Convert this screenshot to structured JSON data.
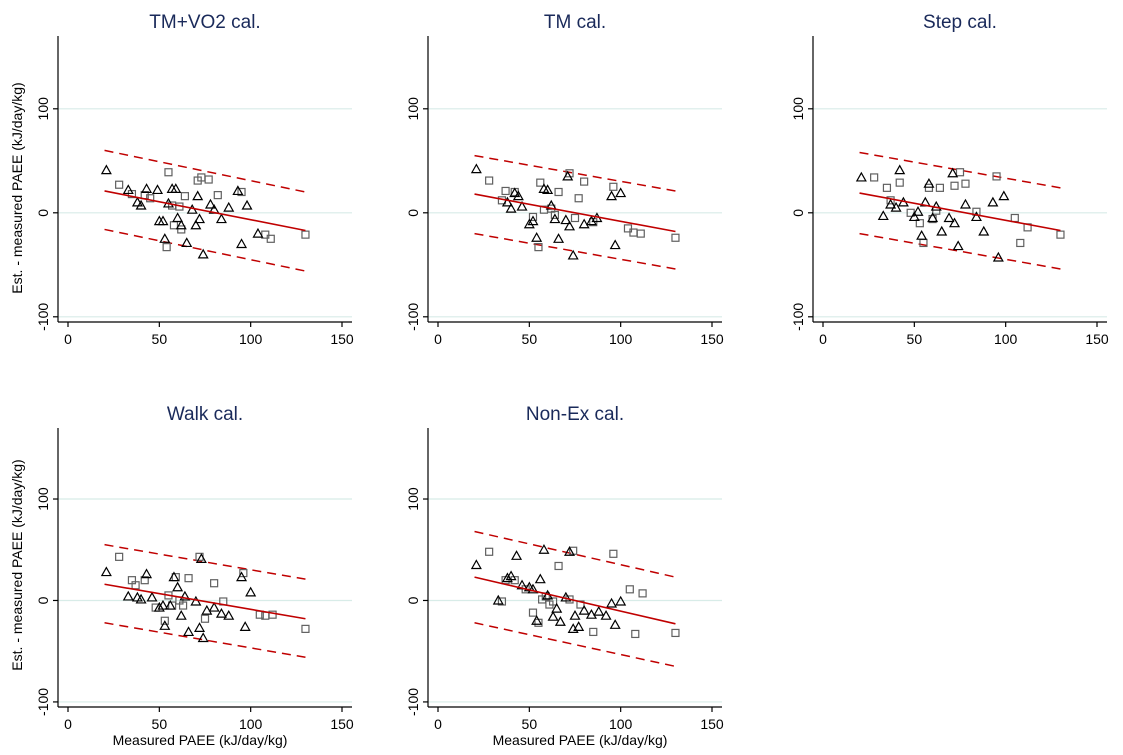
{
  "figure": {
    "ylabel": "Est. - measured PAEE (kJ/day/kg)",
    "xlabel": "Measured PAEE (kJ/day/kg)"
  },
  "colors": {
    "title": "#1a2a5a",
    "fit_line": "#c00000",
    "limits": "#c00000",
    "grid": "#d8ece8",
    "triangle": "#000000",
    "square": "#606060"
  },
  "chart_data": [
    {
      "type": "scatter",
      "title": "TM+VO2 cal.",
      "xlim": [
        0,
        150
      ],
      "ylim": [
        -105,
        170
      ],
      "xticks": [
        0,
        50,
        100,
        150
      ],
      "yticks": [
        -100,
        0,
        100
      ],
      "grid": "y",
      "fit": [
        [
          20,
          21
        ],
        [
          130,
          -17
        ]
      ],
      "lower_limit": [
        [
          20,
          -16
        ],
        [
          130,
          -56
        ]
      ],
      "upper_limit": [
        [
          20,
          60
        ],
        [
          130,
          20
        ]
      ],
      "triangles": [
        [
          21,
          41
        ],
        [
          33,
          22
        ],
        [
          38,
          10
        ],
        [
          40,
          7
        ],
        [
          43,
          23
        ],
        [
          49,
          22
        ],
        [
          50,
          -8
        ],
        [
          52,
          -8
        ],
        [
          53,
          -25
        ],
        [
          55,
          9
        ],
        [
          57,
          23
        ],
        [
          59,
          23
        ],
        [
          60,
          -5
        ],
        [
          62,
          -12
        ],
        [
          65,
          -29
        ],
        [
          68,
          3
        ],
        [
          70,
          -12
        ],
        [
          71,
          16
        ],
        [
          72,
          -6
        ],
        [
          74,
          -40
        ],
        [
          78,
          8
        ],
        [
          80,
          3
        ],
        [
          84,
          -6
        ],
        [
          88,
          5
        ],
        [
          93,
          21
        ],
        [
          95,
          -30
        ],
        [
          98,
          7
        ],
        [
          104,
          -20
        ]
      ],
      "squares": [
        [
          28,
          27
        ],
        [
          35,
          18
        ],
        [
          42,
          17
        ],
        [
          45,
          14
        ],
        [
          54,
          -33
        ],
        [
          55,
          39
        ],
        [
          57,
          7
        ],
        [
          58,
          -12
        ],
        [
          61,
          6
        ],
        [
          62,
          -16
        ],
        [
          64,
          16
        ],
        [
          71,
          31
        ],
        [
          73,
          34
        ],
        [
          77,
          32
        ],
        [
          82,
          17
        ],
        [
          95,
          20
        ],
        [
          108,
          -21
        ],
        [
          111,
          -25
        ],
        [
          130,
          -21
        ]
      ]
    },
    {
      "type": "scatter",
      "title": "TM cal.",
      "xlim": [
        0,
        150
      ],
      "ylim": [
        -105,
        170
      ],
      "xticks": [
        0,
        50,
        100,
        150
      ],
      "yticks": [
        -100,
        0,
        100
      ],
      "grid": "y",
      "fit": [
        [
          20,
          18
        ],
        [
          130,
          -18
        ]
      ],
      "lower_limit": [
        [
          20,
          -20
        ],
        [
          130,
          -54
        ]
      ],
      "upper_limit": [
        [
          20,
          55
        ],
        [
          130,
          21
        ]
      ],
      "triangles": [
        [
          21,
          42
        ],
        [
          38,
          10
        ],
        [
          40,
          4
        ],
        [
          42,
          19
        ],
        [
          44,
          16
        ],
        [
          46,
          6
        ],
        [
          50,
          -11
        ],
        [
          52,
          -8
        ],
        [
          54,
          -24
        ],
        [
          58,
          23
        ],
        [
          60,
          22
        ],
        [
          62,
          7
        ],
        [
          64,
          -6
        ],
        [
          66,
          -25
        ],
        [
          70,
          -7
        ],
        [
          71,
          35
        ],
        [
          72,
          -13
        ],
        [
          74,
          -41
        ],
        [
          80,
          -11
        ],
        [
          84,
          -8
        ],
        [
          87,
          -5
        ],
        [
          95,
          16
        ],
        [
          97,
          -31
        ],
        [
          100,
          19
        ]
      ],
      "squares": [
        [
          28,
          31
        ],
        [
          35,
          12
        ],
        [
          37,
          21
        ],
        [
          42,
          20
        ],
        [
          52,
          -4
        ],
        [
          55,
          -33
        ],
        [
          56,
          29
        ],
        [
          58,
          3
        ],
        [
          62,
          4
        ],
        [
          64,
          -2
        ],
        [
          66,
          20
        ],
        [
          72,
          38
        ],
        [
          75,
          -5
        ],
        [
          77,
          14
        ],
        [
          80,
          30
        ],
        [
          85,
          -9
        ],
        [
          96,
          25
        ],
        [
          104,
          -15
        ],
        [
          107,
          -19
        ],
        [
          111,
          -20
        ],
        [
          130,
          -24
        ]
      ]
    },
    {
      "type": "scatter",
      "title": "Step cal.",
      "xlim": [
        0,
        150
      ],
      "ylim": [
        -105,
        170
      ],
      "xticks": [
        0,
        50,
        100,
        150
      ],
      "yticks": [
        -100,
        0,
        100
      ],
      "grid": "y",
      "fit": [
        [
          20,
          19
        ],
        [
          130,
          -17
        ]
      ],
      "lower_limit": [
        [
          20,
          -20
        ],
        [
          130,
          -54
        ]
      ],
      "upper_limit": [
        [
          20,
          58
        ],
        [
          130,
          24
        ]
      ],
      "triangles": [
        [
          21,
          34
        ],
        [
          33,
          -3
        ],
        [
          37,
          8
        ],
        [
          40,
          5
        ],
        [
          42,
          41
        ],
        [
          44,
          10
        ],
        [
          50,
          -4
        ],
        [
          52,
          1
        ],
        [
          54,
          -22
        ],
        [
          56,
          10
        ],
        [
          58,
          28
        ],
        [
          60,
          -5
        ],
        [
          62,
          6
        ],
        [
          65,
          -18
        ],
        [
          69,
          -5
        ],
        [
          71,
          38
        ],
        [
          72,
          -10
        ],
        [
          74,
          -32
        ],
        [
          78,
          8
        ],
        [
          84,
          -4
        ],
        [
          88,
          -18
        ],
        [
          93,
          10
        ],
        [
          96,
          -43
        ],
        [
          99,
          16
        ]
      ],
      "squares": [
        [
          28,
          34
        ],
        [
          35,
          24
        ],
        [
          37,
          12
        ],
        [
          42,
          29
        ],
        [
          48,
          0
        ],
        [
          53,
          -10
        ],
        [
          55,
          -29
        ],
        [
          58,
          24
        ],
        [
          60,
          -6
        ],
        [
          62,
          2
        ],
        [
          64,
          24
        ],
        [
          72,
          26
        ],
        [
          75,
          39
        ],
        [
          78,
          28
        ],
        [
          84,
          1
        ],
        [
          95,
          35
        ],
        [
          105,
          -5
        ],
        [
          108,
          -29
        ],
        [
          112,
          -14
        ],
        [
          130,
          -21
        ]
      ]
    },
    {
      "type": "scatter",
      "title": "Walk cal.",
      "xlim": [
        0,
        150
      ],
      "ylim": [
        -105,
        170
      ],
      "xticks": [
        0,
        50,
        100,
        150
      ],
      "yticks": [
        -100,
        0,
        100
      ],
      "grid": "y",
      "fit": [
        [
          20,
          16
        ],
        [
          130,
          -18
        ]
      ],
      "lower_limit": [
        [
          20,
          -22
        ],
        [
          130,
          -56
        ]
      ],
      "upper_limit": [
        [
          20,
          55
        ],
        [
          130,
          21
        ]
      ],
      "triangles": [
        [
          21,
          28
        ],
        [
          33,
          4
        ],
        [
          38,
          3
        ],
        [
          40,
          1
        ],
        [
          43,
          26
        ],
        [
          46,
          3
        ],
        [
          50,
          -7
        ],
        [
          52,
          -5
        ],
        [
          53,
          -25
        ],
        [
          56,
          -5
        ],
        [
          58,
          23
        ],
        [
          60,
          13
        ],
        [
          62,
          -15
        ],
        [
          64,
          4
        ],
        [
          66,
          -31
        ],
        [
          70,
          -1
        ],
        [
          72,
          -27
        ],
        [
          73,
          41
        ],
        [
          74,
          -37
        ],
        [
          76,
          -10
        ],
        [
          80,
          -7
        ],
        [
          84,
          -13
        ],
        [
          88,
          -15
        ],
        [
          95,
          23
        ],
        [
          97,
          -26
        ],
        [
          100,
          8
        ]
      ],
      "squares": [
        [
          28,
          43
        ],
        [
          35,
          20
        ],
        [
          37,
          15
        ],
        [
          42,
          20
        ],
        [
          48,
          -7
        ],
        [
          53,
          -20
        ],
        [
          55,
          5
        ],
        [
          57,
          -5
        ],
        [
          59,
          23
        ],
        [
          61,
          0
        ],
        [
          63,
          -5
        ],
        [
          66,
          22
        ],
        [
          72,
          43
        ],
        [
          75,
          -18
        ],
        [
          80,
          17
        ],
        [
          85,
          -1
        ],
        [
          96,
          27
        ],
        [
          105,
          -14
        ],
        [
          108,
          -15
        ],
        [
          112,
          -14
        ],
        [
          130,
          -28
        ]
      ]
    },
    {
      "type": "scatter",
      "title": "Non-Ex cal.",
      "xlim": [
        0,
        150
      ],
      "ylim": [
        -105,
        170
      ],
      "xticks": [
        0,
        50,
        100,
        150
      ],
      "yticks": [
        -100,
        0,
        100
      ],
      "grid": "y",
      "fit": [
        [
          20,
          23
        ],
        [
          130,
          -23
        ]
      ],
      "lower_limit": [
        [
          20,
          -22
        ],
        [
          130,
          -65
        ]
      ],
      "upper_limit": [
        [
          20,
          68
        ],
        [
          130,
          23
        ]
      ],
      "triangles": [
        [
          21,
          35
        ],
        [
          33,
          0
        ],
        [
          38,
          22
        ],
        [
          40,
          24
        ],
        [
          43,
          44
        ],
        [
          46,
          15
        ],
        [
          50,
          13
        ],
        [
          52,
          11
        ],
        [
          54,
          -20
        ],
        [
          56,
          21
        ],
        [
          58,
          50
        ],
        [
          60,
          5
        ],
        [
          63,
          -16
        ],
        [
          65,
          -8
        ],
        [
          67,
          -21
        ],
        [
          70,
          3
        ],
        [
          72,
          48
        ],
        [
          74,
          -28
        ],
        [
          75,
          -15
        ],
        [
          77,
          -26
        ],
        [
          80,
          -10
        ],
        [
          84,
          -14
        ],
        [
          88,
          -11
        ],
        [
          92,
          -15
        ],
        [
          95,
          -3
        ],
        [
          97,
          -24
        ],
        [
          100,
          -1
        ]
      ],
      "squares": [
        [
          28,
          48
        ],
        [
          35,
          -1
        ],
        [
          37,
          20
        ],
        [
          42,
          20
        ],
        [
          48,
          11
        ],
        [
          52,
          -12
        ],
        [
          55,
          -22
        ],
        [
          57,
          1
        ],
        [
          59,
          4
        ],
        [
          61,
          -4
        ],
        [
          63,
          -1
        ],
        [
          66,
          34
        ],
        [
          72,
          1
        ],
        [
          74,
          49
        ],
        [
          78,
          -4
        ],
        [
          85,
          -31
        ],
        [
          96,
          46
        ],
        [
          105,
          11
        ],
        [
          108,
          -33
        ],
        [
          112,
          7
        ],
        [
          130,
          -32
        ]
      ]
    }
  ]
}
